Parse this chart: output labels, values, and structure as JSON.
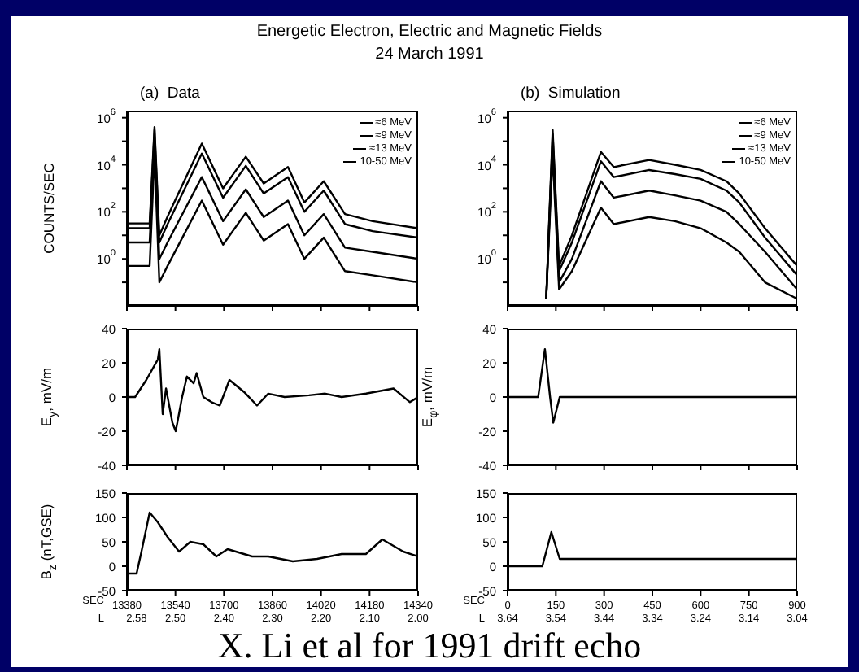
{
  "chart_data": [
    {
      "type": "other",
      "title": "Energetic Electron, Electric and Magnetic Fields",
      "subtitle": "24 March 1991",
      "annotations": [
        "X. Li et al for 1991 drift echo"
      ]
    },
    {
      "type": "line",
      "title": "(a)  Data",
      "ylabel": "COUNTS/SEC",
      "log": true,
      "legend": "top right",
      "tick_labels": "y",
      "xlim": [
        13380,
        14340
      ],
      "xticks": [
        13380,
        13540,
        13700,
        13860,
        14020,
        14180,
        14340
      ],
      "ylim": [
        0.01,
        2000000
      ],
      "yticks": [
        {
          "value": 0.1,
          "label": null
        },
        {
          "value": 1,
          "label": "10$^{0}$"
        },
        {
          "value": 10,
          "label": null
        },
        {
          "value": 100,
          "label": "10$^{2}$"
        },
        {
          "value": 1000,
          "label": null
        },
        {
          "value": 10000,
          "label": "10$^{4}$"
        },
        {
          "value": 100000,
          "label": null
        },
        {
          "value": 1000000,
          "label": "10$^{6}$"
        }
      ],
      "x": [
        13380,
        13455,
        13471,
        13487,
        13514,
        13627,
        13697,
        13772,
        13831,
        13911,
        13965,
        14029,
        14099,
        14190,
        14340
      ],
      "series": [
        {
          "name": "≈6 MeV",
          "color": "#000000",
          "values": [
            32,
            32,
            400000,
            10,
            63,
            80000,
            1000,
            22000,
            1600,
            8000,
            250,
            2000,
            80,
            40,
            20
          ]
        },
        {
          "name": "≈9 MeV",
          "color": "#000000",
          "values": [
            20,
            20,
            300000,
            5,
            30,
            30000,
            400,
            9000,
            600,
            3000,
            100,
            800,
            30,
            15,
            8
          ]
        },
        {
          "name": "≈13 MeV",
          "color": "#000000",
          "values": [
            5,
            5,
            100000,
            1,
            5,
            3000,
            40,
            900,
            60,
            300,
            10,
            80,
            3,
            2,
            1
          ]
        },
        {
          "name": "10-50 MeV",
          "color": "#000000",
          "values": [
            0.5,
            0.5,
            30000,
            0.1,
            0.5,
            300,
            4,
            90,
            6,
            30,
            1,
            8,
            0.3,
            0.2,
            0.1
          ]
        }
      ]
    },
    {
      "type": "line",
      "title": "(b)  Simulation",
      "log": true,
      "legend": "top right",
      "tick_labels": "y",
      "xlim": [
        0,
        900
      ],
      "xticks": [
        0,
        150,
        300,
        450,
        600,
        750,
        900
      ],
      "ylim": [
        0.01,
        2000000
      ],
      "yticks": [
        {
          "value": 0.1,
          "label": null
        },
        {
          "value": 1,
          "label": "10$^{0}$"
        },
        {
          "value": 10,
          "label": null
        },
        {
          "value": 100,
          "label": "10$^{2}$"
        },
        {
          "value": 1000,
          "label": null
        },
        {
          "value": 10000,
          "label": "10$^{4}$"
        },
        {
          "value": 100000,
          "label": null
        },
        {
          "value": 1000000,
          "label": "10$^{6}$"
        }
      ],
      "x": [
        120,
        140,
        160,
        200,
        290,
        330,
        440,
        520,
        600,
        680,
        720,
        800,
        900
      ],
      "series": [
        {
          "name": "≈6 MeV",
          "color": "#000000",
          "values": [
            0.02,
            300000,
            0.5,
            10,
            35000,
            8000,
            16000,
            10000,
            6000,
            2000,
            600,
            20,
            0.5
          ]
        },
        {
          "name": "≈9 MeV",
          "color": "#000000",
          "values": [
            0.02,
            200000,
            0.3,
            5,
            14000,
            3000,
            6000,
            4000,
            2500,
            800,
            250,
            8,
            0.2
          ]
        },
        {
          "name": "≈13 MeV",
          "color": "#000000",
          "values": [
            0.02,
            100000,
            0.1,
            1,
            2000,
            400,
            800,
            500,
            300,
            100,
            30,
            2,
            0.05
          ]
        },
        {
          "name": "10-50 MeV",
          "color": "#000000",
          "values": [
            0.02,
            30000,
            0.05,
            0.3,
            150,
            30,
            60,
            40,
            20,
            5,
            2,
            0.1,
            0.02
          ]
        }
      ]
    },
    {
      "type": "line",
      "ylabel": "E$_{y}$, mV/m",
      "tick_labels": "y",
      "xlim": [
        13380,
        14340
      ],
      "xticks": [
        13380,
        13540,
        13700,
        13860,
        14020,
        14180,
        14340
      ],
      "ylim": [
        -40,
        40
      ],
      "yticks": [
        -40,
        -20,
        0,
        20,
        40
      ],
      "x": [
        13380,
        13407,
        13444,
        13482,
        13487,
        13498,
        13509,
        13530,
        13541,
        13562,
        13578,
        13600,
        13610,
        13632,
        13659,
        13686,
        13718,
        13766,
        13809,
        13846,
        13900,
        13980,
        14034,
        14088,
        14168,
        14259,
        14313,
        14340
      ],
      "series": [
        {
          "color": "#000000",
          "values": [
            0,
            0,
            10,
            22,
            28,
            -10,
            5,
            -15,
            -20,
            0,
            12,
            8,
            14,
            0,
            -3,
            -5,
            10,
            3,
            -5,
            2,
            0,
            1,
            2,
            0,
            2,
            5,
            -3,
            0
          ]
        }
      ]
    },
    {
      "type": "line",
      "ylabel": "E$_{φ}$, mV/m",
      "tick_labels": "y",
      "xlim": [
        0,
        900
      ],
      "xticks": [
        0,
        150,
        300,
        450,
        600,
        750,
        900
      ],
      "ylim": [
        -40,
        40
      ],
      "yticks": [
        -40,
        -20,
        0,
        20,
        40
      ],
      "x": [
        0,
        95,
        116,
        132,
        142,
        162,
        900
      ],
      "series": [
        {
          "color": "#000000",
          "values": [
            0,
            0,
            28,
            0,
            -15,
            0,
            0
          ]
        }
      ]
    },
    {
      "type": "line",
      "ylabel": "B$_{z}$ (nT,GSE)",
      "xlabel": "SEC",
      "x2label": "L",
      "xlim": [
        13380,
        14340
      ],
      "xticks": [
        13380,
        13540,
        13700,
        13860,
        14020,
        14180,
        14340
      ],
      "x2lim": [
        2.6,
        2.0
      ],
      "x2ticks": [
        {
          "value": 2.58,
          "label": "2.58"
        },
        {
          "value": 2.5,
          "label": "2.50"
        },
        {
          "value": 2.4,
          "label": "2.40"
        },
        {
          "value": 2.3,
          "label": "2.30"
        },
        {
          "value": 2.2,
          "label": "2.20"
        },
        {
          "value": 2.1,
          "label": "2.10"
        },
        {
          "value": 2.0,
          "label": "2.00"
        }
      ],
      "ylim": [
        -50,
        150
      ],
      "yticks": [
        -50,
        0,
        50,
        100,
        150
      ],
      "x": [
        13380,
        13412,
        13428,
        13455,
        13482,
        13514,
        13552,
        13589,
        13632,
        13675,
        13712,
        13793,
        13846,
        13927,
        14007,
        14088,
        14168,
        14222,
        14291,
        14340
      ],
      "series": [
        {
          "color": "#000000",
          "values": [
            -15,
            -15,
            30,
            110,
            90,
            60,
            30,
            50,
            45,
            20,
            35,
            20,
            20,
            10,
            15,
            25,
            25,
            55,
            30,
            20
          ]
        }
      ]
    },
    {
      "type": "line",
      "xlabel": "SEC",
      "x2label": "L",
      "xlim": [
        0,
        900
      ],
      "xticks": [
        0,
        150,
        300,
        450,
        600,
        750,
        900
      ],
      "x2lim": [
        3.64,
        3.04
      ],
      "x2ticks": [
        3.64,
        3.54,
        3.44,
        3.34,
        3.24,
        3.14,
        3.04
      ],
      "ylim": [
        -50,
        150
      ],
      "yticks": [
        -50,
        0,
        50,
        100,
        150
      ],
      "x": [
        0,
        108,
        136,
        162,
        900
      ],
      "series": [
        {
          "color": "#000000",
          "values": [
            0,
            0,
            70,
            15,
            15
          ]
        }
      ]
    }
  ]
}
